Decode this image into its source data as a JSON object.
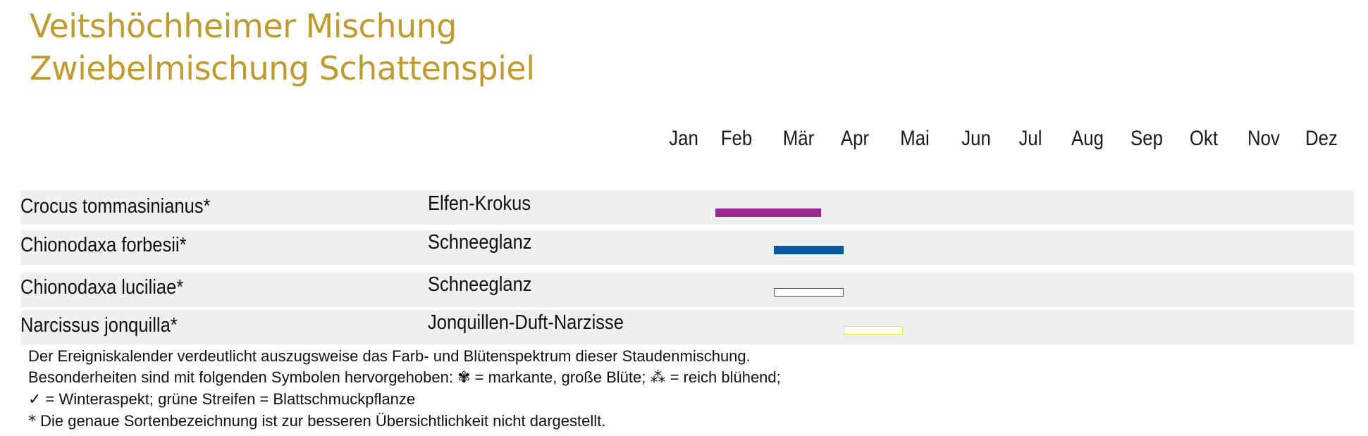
{
  "header": {
    "title_line1": "Veitshöchheimer Mischung",
    "title_line2": "Zwiebelmischung Schattenspiel"
  },
  "chart_data": {
    "type": "bar",
    "months": [
      "Jan",
      "Feb",
      "Mär",
      "Apr",
      "Mai",
      "Jun",
      "Jul",
      "Aug",
      "Sep",
      "Okt",
      "Nov",
      "Dez"
    ],
    "rows": [
      {
        "latin": "Crocus tommasinianus*",
        "common": "Elfen-Krokus",
        "start": 1.6,
        "end": 3.4,
        "color": "#9b2a8e",
        "style": "filled"
      },
      {
        "latin": "Chionodaxa forbesii*",
        "common": "Schneeglanz",
        "start": 2.6,
        "end": 3.8,
        "color": "#0a5aa2",
        "style": "filled"
      },
      {
        "latin": "Chionodaxa luciliae*",
        "common": "Schneeglanz",
        "start": 2.6,
        "end": 3.8,
        "color": "#ffffff",
        "border": "#555555",
        "style": "outline"
      },
      {
        "latin": "Narcissus jonquilla*",
        "common": "Jonquillen-Duft-Narzisse",
        "start": 3.8,
        "end": 4.8,
        "color": "#fffdf0",
        "border": "#f2ea3c",
        "style": "outline"
      }
    ]
  },
  "legend": {
    "line1": "Der Ereigniskalender verdeutlicht auszugsweise das Farb- und Blütenspektrum dieser Staudenmischung.",
    "line2_pre": "Besonderheiten sind mit folgenden Symbolen hervorgehoben: ",
    "line2_sym1": "✾",
    "line2_mid": " = markante, große Blüte; ",
    "line2_sym2": "⁂",
    "line2_post": "  = reich blühend;",
    "line3_sym": "✓",
    "line3_text": "  = Winteraspekt; grüne Streifen = Blattschmuckpflanze",
    "line4_sym": "*",
    "line4_text": "  Die genaue Sortenbezeichnung ist zur besseren Übersichtlichkeit nicht dargestellt."
  }
}
